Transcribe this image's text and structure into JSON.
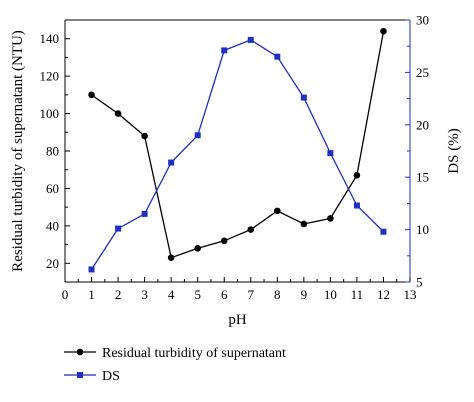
{
  "chart_data": {
    "type": "line",
    "x": [
      1,
      2,
      3,
      4,
      5,
      6,
      7,
      8,
      9,
      10,
      11,
      12
    ],
    "xlabel": "pH",
    "xlim": [
      0,
      13
    ],
    "xticks": [
      0,
      1,
      2,
      3,
      4,
      5,
      6,
      7,
      8,
      9,
      10,
      11,
      12,
      13
    ],
    "ylabel_left": "Residual turbidity of supernatant (NTU)",
    "ylim_left": [
      10,
      150
    ],
    "yticks_left": [
      20,
      40,
      60,
      80,
      100,
      120,
      140
    ],
    "ylabel_right": "DS (%)",
    "ylim_right": [
      5,
      30
    ],
    "yticks_right": [
      5,
      10,
      15,
      20,
      25,
      30
    ],
    "grid": false,
    "legend_placement": "bottom-left, below plot",
    "series": [
      {
        "name": "Residual turbidity of supernatant",
        "axis": "left",
        "color": "#000000",
        "marker": "circle",
        "values": [
          110,
          100,
          88,
          23,
          28,
          32,
          38,
          48,
          41,
          44,
          67,
          144
        ]
      },
      {
        "name": "DS",
        "axis": "right",
        "color": "#1f2fbf",
        "marker": "square",
        "values": [
          6.2,
          10.1,
          11.5,
          16.4,
          19.0,
          27.1,
          28.1,
          26.5,
          22.6,
          17.3,
          12.3,
          9.8
        ]
      }
    ]
  }
}
